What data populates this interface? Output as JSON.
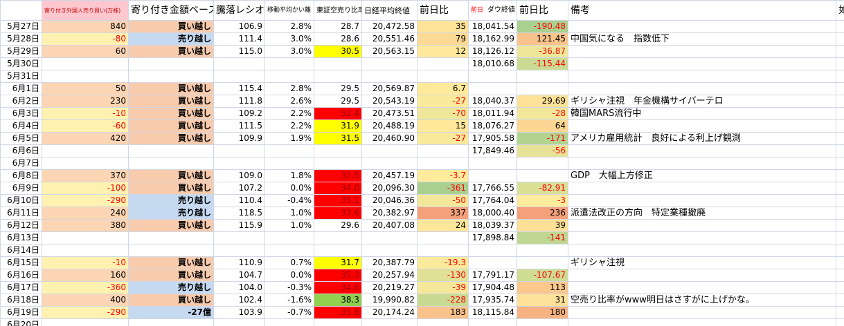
{
  "table": {
    "header": [
      null,
      "寄り付き外国人売り買い(万株)",
      "寄り付き金額ベース",
      "騰落レシオ",
      "移動平均かい離",
      "東証空売り比率",
      "日経平均終値",
      "前日比",
      {
        "prefix": "前日",
        "text": "ダウ終値"
      },
      "前日比",
      "備考",
      "如"
    ],
    "rows": [
      [
        "5月27日",
        "840",
        "買い越し",
        "106.9",
        "2.8%",
        "28.7",
        "20,472.58",
        "35",
        "18,041.54",
        "-190.48",
        null
      ],
      [
        "5月28日",
        "-80",
        "売り越し",
        "111.4",
        "3.0%",
        "28.6",
        "20,551.46",
        "79",
        "18,162.99",
        "121.45",
        "中国気になる　指数低下"
      ],
      [
        "5月29日",
        "60",
        "買い越し",
        "115.0",
        "3.0%",
        "30.5",
        "20,563.15",
        "12",
        "18,126.12",
        "-36.87",
        null
      ],
      [
        "5月30日",
        null,
        null,
        null,
        null,
        null,
        null,
        null,
        "18,010.68",
        "-115.44",
        null
      ],
      [
        "5月31日",
        null,
        null,
        null,
        null,
        null,
        null,
        null,
        null,
        null,
        null
      ],
      [
        "6月1日",
        "50",
        "買い越し",
        "115.4",
        "2.8%",
        "29.5",
        "20,569.87",
        "6.7",
        null,
        null,
        null
      ],
      [
        "6月2日",
        "230",
        "買い越し",
        "111.8",
        "2.6%",
        "29.5",
        "20,543.19",
        "-27",
        "18,040.37",
        "29.69",
        "ギリシャ注視　年金機構サイバーテロ"
      ],
      [
        "6月3日",
        "-10",
        "買い越し",
        "109.2",
        "2.2%",
        "32.4",
        "20,473.51",
        "-70",
        "18,011.94",
        "-28",
        "韓国MARS流行中"
      ],
      [
        "6月4日",
        "-60",
        "買い越し",
        "111.5",
        "2.2%",
        "31.9",
        "20,488.19",
        "15",
        "18,076.27",
        "64",
        null
      ],
      [
        "6月5日",
        "420",
        "買い越し",
        "109.9",
        "1.9%",
        "31.5",
        "20,460.90",
        "-27",
        "17,905.58",
        "-171",
        "アメリカ雇用統計　良好による利上げ観測"
      ],
      [
        "6月6日",
        null,
        null,
        null,
        null,
        null,
        null,
        null,
        "17,849.46",
        "-56",
        null
      ],
      [
        "6月7日",
        null,
        null,
        null,
        null,
        null,
        null,
        null,
        null,
        null,
        null
      ],
      [
        "6月8日",
        "370",
        "買い越し",
        "109.0",
        "1.8%",
        "32.5",
        "20,457.19",
        "-3.7",
        null,
        null,
        "GDP　大幅上方修正"
      ],
      [
        "6月9日",
        "-100",
        "買い越し",
        "107.2",
        "0.0%",
        "34.0",
        "20,096.30",
        "-361",
        "17,766.55",
        "-82.91",
        null
      ],
      [
        "6月10日",
        "-290",
        "売り越し",
        "110.4",
        "-0.4%",
        "35.1",
        "20,046.36",
        "-50",
        "17,764.04",
        "-3",
        null
      ],
      [
        "6月11日",
        "240",
        "売り越し",
        "118.5",
        "1.0%",
        "33.6",
        "20,382.97",
        "337",
        "18,000.40",
        "236",
        "派遣法改正の方向　特定業種撤廃"
      ],
      [
        "6月12日",
        "380",
        "買い越し",
        "115.9",
        "1.0%",
        "29.6",
        "20,407.08",
        "24",
        "18,039.37",
        "39",
        null
      ],
      [
        "6月13日",
        null,
        null,
        null,
        null,
        null,
        null,
        null,
        "17,898.84",
        "-141",
        null
      ],
      [
        "6月14日",
        null,
        null,
        null,
        null,
        null,
        null,
        null,
        null,
        null,
        null
      ],
      [
        "6月15日",
        "-10",
        "買い越し",
        "110.9",
        "0.7%",
        "31.7",
        "20,387.79",
        "-19.3",
        null,
        null,
        "ギリシャ注視"
      ],
      [
        "6月16日",
        "160",
        "買い越し",
        "104.7",
        "0.0%",
        "35.3",
        "20,257.94",
        "-130",
        "17,791.17",
        "-107.67",
        null
      ],
      [
        "6月17日",
        "-360",
        "売り越し",
        "104.0",
        "-0.3%",
        "34.6",
        "20,219.27",
        "-39",
        "17,904.48",
        "113",
        null
      ],
      [
        "6月18日",
        "400",
        "買い越し",
        "102.4",
        "-1.6%",
        "38.3",
        "19,990.82",
        "-228",
        "17,935.74",
        "31",
        "空売り比率がwww明日はさすがに上げかな。"
      ],
      [
        "6月19日",
        "-290",
        "-27億",
        "103.9",
        "-0.7%",
        "35.8",
        "20,174.24",
        "183",
        "18,115.84",
        "180",
        null
      ],
      [
        "6月20日",
        null,
        null,
        null,
        null,
        null,
        null,
        null,
        null,
        null,
        null
      ]
    ]
  }
}
